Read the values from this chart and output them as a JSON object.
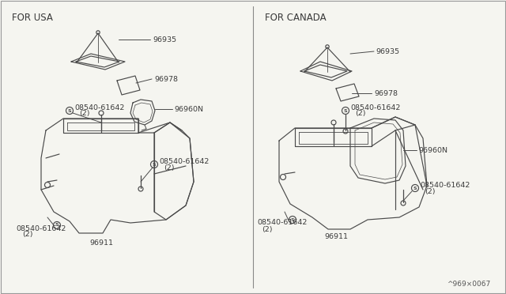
{
  "bg_color": "#f5f5f0",
  "line_color": "#4a4a4a",
  "text_color": "#3a3a3a",
  "title_left": "FOR USA",
  "title_right": "FOR CANADA",
  "part_96935": "96935",
  "part_96978": "96978",
  "part_96960N": "96960N",
  "part_08540": "08540-61642",
  "part_2": "(2)",
  "part_96911": "96911",
  "footnote": "^969×0067",
  "font_size_title": 8.5,
  "font_size_part": 6.8,
  "font_size_s": 5.5,
  "line_width": 0.85,
  "divider_color": "#888888"
}
